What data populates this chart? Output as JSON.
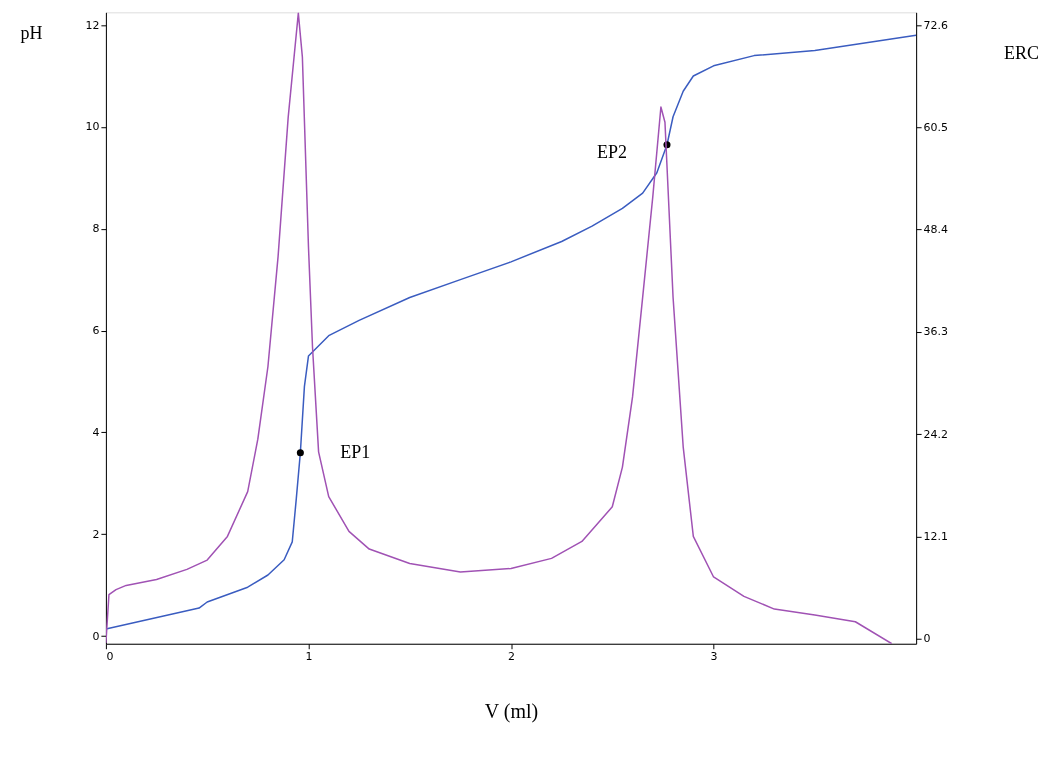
{
  "chart_data": {
    "type": "line",
    "xlabel": "V (ml)",
    "ylabel": "pH",
    "y2label": "ERC",
    "xlim": [
      0,
      4.0
    ],
    "xticks": [
      0,
      1,
      2,
      3
    ],
    "ylim": [
      -0.15,
      12.25
    ],
    "yticks": [
      0,
      2,
      4,
      6,
      8,
      10,
      12
    ],
    "y2lim": [
      -0.6,
      74.1
    ],
    "y2ticks": [
      0,
      12.1,
      24.2,
      36.3,
      48.4,
      60.5,
      72.6
    ],
    "grid": false,
    "series": [
      {
        "color": "#3a5cc0",
        "x": [
          0,
          0.46,
          0.5,
          0.7,
          0.8,
          0.88,
          0.92,
          0.94,
          0.96,
          0.98,
          1.0,
          1.1,
          1.25,
          1.5,
          1.75,
          2.0,
          2.25,
          2.4,
          2.55,
          2.65,
          2.72,
          2.77,
          2.8,
          2.85,
          2.9,
          3.0,
          3.2,
          3.5,
          4.0
        ],
        "values": [
          0.14,
          0.55,
          0.67,
          0.96,
          1.2,
          1.5,
          1.85,
          2.7,
          3.6,
          4.9,
          5.5,
          5.9,
          6.2,
          6.65,
          7.0,
          7.35,
          7.75,
          8.05,
          8.4,
          8.7,
          9.1,
          9.65,
          10.2,
          10.7,
          11.0,
          11.2,
          11.4,
          11.5,
          11.8
        ]
      },
      {
        "axis": "y2",
        "color": "#a052b4",
        "x": [
          0,
          0.015,
          0.05,
          0.1,
          0.25,
          0.4,
          0.5,
          0.6,
          0.7,
          0.75,
          0.8,
          0.85,
          0.9,
          0.95,
          0.97,
          1.0,
          1.02,
          1.05,
          1.1,
          1.2,
          1.3,
          1.5,
          1.75,
          2.0,
          2.2,
          2.35,
          2.5,
          2.55,
          2.6,
          2.65,
          2.7,
          2.74,
          2.76,
          2.8,
          2.85,
          2.9,
          3.0,
          3.15,
          3.3,
          3.5,
          3.7,
          3.88
        ],
        "values": [
          -0.5,
          5.2,
          5.8,
          6.3,
          7.0,
          8.2,
          9.3,
          12.1,
          17.4,
          23.6,
          32.2,
          45.2,
          61.7,
          74.0,
          68.8,
          46.4,
          34.5,
          22.1,
          16.8,
          12.7,
          10.6,
          8.9,
          7.9,
          8.3,
          9.5,
          11.5,
          15.6,
          20.3,
          28.6,
          40.4,
          52.3,
          62.9,
          61.1,
          40.4,
          22.7,
          12.1,
          7.3,
          5.0,
          3.5,
          2.8,
          2.0,
          -0.6
        ]
      },
      {
        "type": "scatter",
        "color": "#000000",
        "x": [
          0.96,
          2.77
        ],
        "values": [
          3.6,
          9.65
        ]
      }
    ],
    "annotations": [
      {
        "text": "EP1",
        "x": 0.96,
        "y": 3.6
      },
      {
        "text": "EP2",
        "x": 2.77,
        "y": 9.65
      }
    ]
  }
}
